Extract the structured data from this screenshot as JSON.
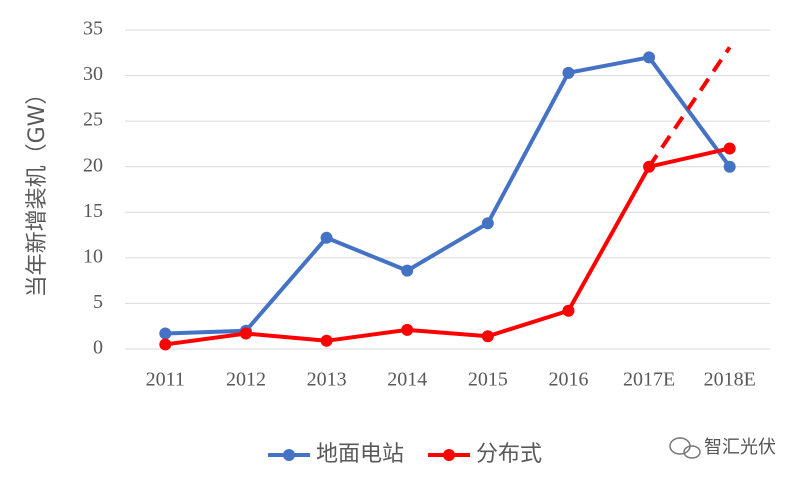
{
  "chart_data": {
    "type": "line",
    "y_label": "当年新增装机（GW）",
    "categories": [
      "2011",
      "2012",
      "2013",
      "2014",
      "2015",
      "2016",
      "2017E",
      "2018E"
    ],
    "series": [
      {
        "name": "地面电站",
        "color": "#4472c4",
        "values": [
          1.7,
          2.0,
          12.2,
          8.6,
          13.8,
          30.3,
          32.0,
          20.0
        ]
      },
      {
        "name": "分布式",
        "color": "#ff0000",
        "values": [
          0.5,
          1.7,
          0.9,
          2.1,
          1.4,
          4.2,
          20.0,
          22.0
        ]
      },
      {
        "color": "#ff0000",
        "dashed": true,
        "values": [
          null,
          null,
          null,
          null,
          null,
          null,
          20.0,
          33.1
        ]
      }
    ],
    "ylim": [
      0,
      35
    ],
    "yticks": [
      0,
      5,
      10,
      15,
      20,
      25,
      30,
      35
    ],
    "grid": true,
    "legend": "bottom",
    "watermark": "智汇光伏"
  }
}
